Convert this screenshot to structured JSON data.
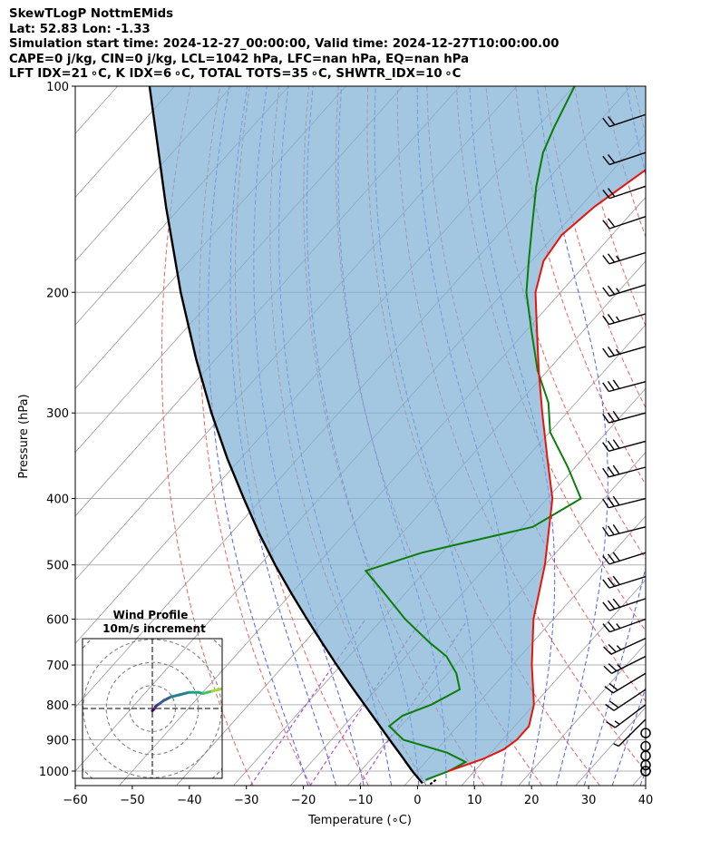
{
  "title_lines": [
    "SkewTLogP NottmEMids",
    "Lat: 52.83   Lon: -1.33",
    "Simulation start time: 2024-12-27_00:00:00, Valid time: 2024-12-27T10:00:00.00",
    "CAPE=0 j/kg, CIN=0 j/kg, LCL=1042 hPa, LFC=nan hPa, EQ=nan hPa",
    "LFT IDX=21 ∘C, K IDX=6 ∘C, TOTAL TOTS=35 ∘C, SHWTR_IDX=10 ∘C"
  ],
  "chart_data": {
    "type": "line",
    "subtype": "skewT-logP",
    "xlabel": "Temperature (∘C)",
    "ylabel": "Pressure (hPa)",
    "xlim": [
      -60,
      40
    ],
    "ylim": [
      1050,
      100
    ],
    "x_ticks": [
      -60,
      -50,
      -40,
      -30,
      -20,
      -10,
      0,
      10,
      20,
      30,
      40
    ],
    "x_tick_labels": [
      "−60",
      "−50",
      "−40",
      "−30",
      "−20",
      "−10",
      "0",
      "10",
      "20",
      "30",
      "40"
    ],
    "y_ticks": [
      1000,
      900,
      800,
      700,
      600,
      500,
      400,
      300,
      200,
      100
    ],
    "y_tick_labels": [
      "1000",
      "900",
      "800",
      "700",
      "600",
      "500",
      "400",
      "300",
      "200",
      "100"
    ],
    "series": [
      {
        "name": "temperature",
        "color": "#e8140c",
        "p": [
          1000,
          960,
          930,
          900,
          860,
          800,
          700,
          600,
          500,
          400,
          350,
          300,
          260,
          230,
          200,
          180,
          165,
          150,
          130,
          115,
          108,
          100
        ],
        "t": [
          5.4,
          9.6,
          11.7,
          12.5,
          12.5,
          10.0,
          3.4,
          -3.5,
          -10.0,
          -19.1,
          -26.2,
          -34.3,
          -41.6,
          -47.6,
          -54.4,
          -57.9,
          -58.8,
          -57.5,
          -53.8,
          -50.6,
          -50.2,
          -50.4
        ]
      },
      {
        "name": "dewpoint",
        "color": "#0a7d0a",
        "p": [
          1030,
          1000,
          970,
          940,
          900,
          860,
          830,
          800,
          760,
          720,
          680,
          650,
          600,
          550,
          510,
          480,
          440,
          400,
          360,
          320,
          290,
          260,
          230,
          200,
          180,
          160,
          140,
          125,
          115,
          100
        ],
        "t": [
          2.8,
          5.5,
          7.0,
          2.3,
          -7.4,
          -12.0,
          -11.3,
          -8.0,
          -5.4,
          -8.5,
          -12.9,
          -17.9,
          -26.0,
          -33.7,
          -40.5,
          -33.5,
          -18.1,
          -14.1,
          -21.3,
          -29.9,
          -34.8,
          -41.8,
          -48.5,
          -56.0,
          -60.5,
          -65.4,
          -70.9,
          -75.0,
          -77.0,
          -79.9
        ]
      },
      {
        "name": "parcel",
        "color": "#000000",
        "p": [
          1042,
          1000,
          950,
          900,
          850,
          800,
          750,
          700,
          650,
          600,
          550,
          500,
          450,
          400,
          350,
          300,
          250,
          200,
          150,
          100
        ],
        "t": [
          2.8,
          -0.9,
          -5.2,
          -9.8,
          -14.6,
          -19.7,
          -25.1,
          -30.8,
          -36.8,
          -43.2,
          -50.0,
          -57.3,
          -65.0,
          -73.2,
          -82.3,
          -92.3,
          -103.5,
          -116.6,
          -132.6,
          -154.4
        ]
      }
    ],
    "shaded_region": {
      "between": [
        "parcel",
        "temperature"
      ],
      "color": "#7fb0d6"
    },
    "reference_lines": [
      "isotherms",
      "dry adiabats",
      "moist adiabats",
      "mixing ratio"
    ],
    "wind_barbs": {
      "p": [
        1000,
        1000,
        980,
        950,
        920,
        880,
        840,
        800,
        760,
        720,
        680,
        640,
        600,
        560,
        520,
        480,
        440,
        400,
        360,
        330,
        300,
        270,
        240,
        215,
        195,
        175,
        155,
        140,
        125,
        110
      ],
      "u": [
        0,
        0,
        0,
        0,
        0,
        0,
        2,
        8,
        9,
        10,
        12,
        13,
        14,
        15,
        16,
        16,
        16,
        16,
        15,
        15,
        15,
        15,
        14,
        14,
        13,
        13,
        12,
        12,
        12,
        12
      ],
      "v": [
        0,
        0,
        0,
        0,
        0,
        0,
        2,
        6,
        6,
        6,
        6,
        6,
        5,
        5,
        5,
        5,
        4,
        4,
        4,
        4,
        4,
        4,
        4,
        4,
        4,
        4,
        4,
        4,
        4,
        4
      ]
    },
    "inset_hodograph": {
      "title": "Wind Profile",
      "subtitle": "10m/s increment",
      "rings_ms": [
        10,
        20,
        30,
        40
      ],
      "u": [
        0,
        0.5,
        1,
        1.5,
        3,
        5,
        8,
        12,
        16,
        20,
        22,
        24,
        26,
        28,
        32,
        35,
        37
      ],
      "v": [
        -1,
        -0.5,
        0,
        1,
        2,
        3.5,
        5,
        6,
        7,
        7,
        6.5,
        7,
        7.5,
        8,
        9,
        8,
        7
      ]
    }
  }
}
